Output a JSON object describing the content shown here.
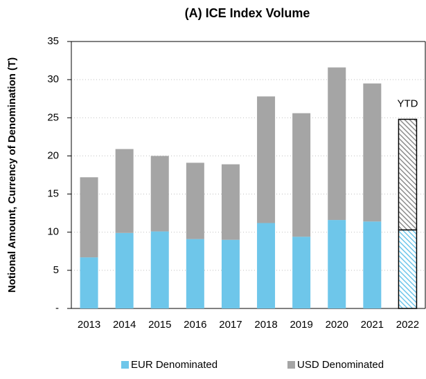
{
  "chart_data": {
    "type": "stacked_bar",
    "title": "(A) ICE Index Volume",
    "y_label": "Notional Amount, Currency of Denomination (T)",
    "categories": [
      "2013",
      "2014",
      "2015",
      "2016",
      "2017",
      "2018",
      "2019",
      "2020",
      "2021",
      "2022"
    ],
    "series": [
      {
        "name": "EUR Denominated",
        "color": "#6ec6ea",
        "values": [
          6.7,
          9.9,
          10.1,
          9.1,
          9.0,
          11.2,
          9.4,
          11.6,
          11.4,
          10.3
        ]
      },
      {
        "name": "USD Denominated",
        "color": "#a5a5a5",
        "values": [
          10.5,
          11.0,
          9.9,
          10.0,
          9.9,
          16.6,
          16.2,
          20.0,
          18.1,
          14.5
        ]
      }
    ],
    "hatched_categories": [
      "2022"
    ],
    "annotation": "YTD",
    "ylim": [
      0,
      35
    ],
    "yticks": [
      {
        "value": 0,
        "label": "-"
      },
      5,
      10,
      15,
      20,
      25,
      30,
      35
    ],
    "grid": true,
    "legend": "bottom"
  }
}
